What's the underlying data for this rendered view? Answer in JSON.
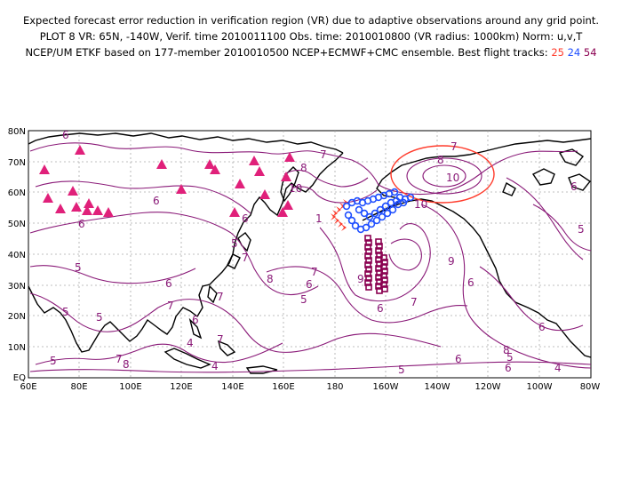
{
  "title": {
    "line1": "Expected forecast error reduction in verification region (VR) due to adaptive observations around any grid point.",
    "line2": "PLOT 8 VR: 65N, -140W, Verif. time 2010011100 Obs. time: 2010010800 (VR radius: 1000km) Norm: u,v,T",
    "line3_prefix": "NCEP/UM ETKF based on 177-member 2010010500 NCEP+ECMWF+CMC ensemble. Best flight tracks:",
    "track_a": "25",
    "track_b": "24",
    "track_c": "54"
  },
  "map": {
    "lon_labels": [
      "60E",
      "80E",
      "100E",
      "120E",
      "140E",
      "160E",
      "180",
      "160W",
      "140W",
      "120W",
      "100W",
      "80W"
    ],
    "lat_labels": [
      "EQ",
      "10N",
      "20N",
      "30N",
      "40N",
      "50N",
      "60N",
      "70N",
      "80N"
    ],
    "contour_labels": [
      "6",
      "7",
      "8",
      "10",
      "10",
      "1",
      "6",
      "6",
      "6",
      "5",
      "5",
      "5",
      "6",
      "7",
      "7",
      "8",
      "6",
      "5",
      "7",
      "9",
      "9",
      "6",
      "6",
      "7",
      "7",
      "5",
      "5",
      "6",
      "7",
      "8",
      "5",
      "4",
      "4",
      "6",
      "5",
      "7",
      "8",
      "5",
      "8",
      "6",
      "6",
      "4",
      "7",
      "6",
      "10"
    ],
    "colors": {
      "contour": "#8a1a78",
      "track_red": "#ff3a2a",
      "track_blue": "#1f4fff",
      "track_purple": "#8a0050",
      "triangles": "#e0207a",
      "vr_circle": "#ff3a2a"
    }
  }
}
